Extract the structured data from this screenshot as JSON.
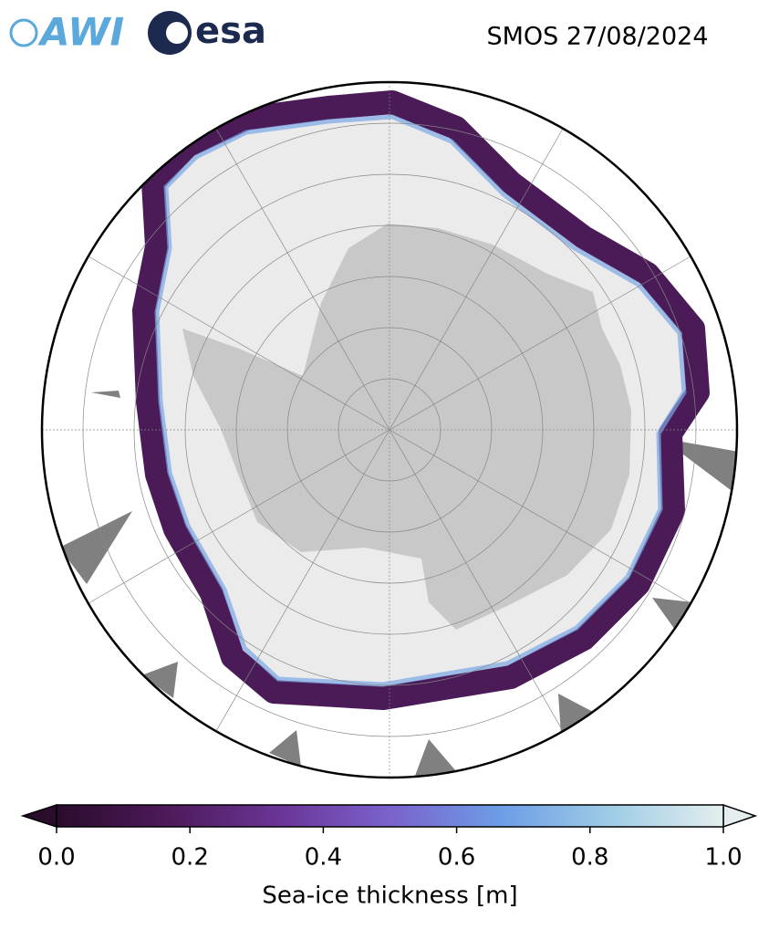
{
  "header": {
    "logos": [
      "AWI",
      "esa"
    ],
    "title": "SMOS 27/08/2024"
  },
  "colorbar": {
    "label": "Sea-ice thickness [m]",
    "lim": [
      0,
      1
    ],
    "ticks": [
      {
        "value": 0,
        "label": "0.0"
      },
      0.2,
      0.4,
      0.6,
      0.8,
      {
        "value": 1,
        "label": "1.0"
      }
    ],
    "colormap": [
      "#2a0c2c",
      "#4d1a5a",
      "#6a3596",
      "#7a62cc",
      "#6d9de6",
      "#9fcde6",
      "#e4eeee"
    ]
  }
}
